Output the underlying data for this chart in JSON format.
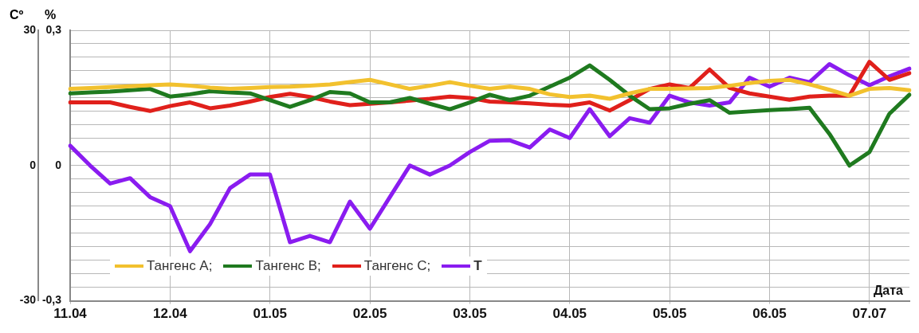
{
  "chart_data": {
    "type": "line",
    "xlabel": "Дата",
    "ylabel": "Cº",
    "y2label": "%",
    "categories": [
      "11.04",
      null,
      null,
      null,
      null,
      "12.04",
      null,
      null,
      null,
      null,
      "01.05",
      null,
      null,
      null,
      null,
      "02.05",
      null,
      null,
      null,
      null,
      "03.05",
      null,
      null,
      null,
      null,
      "04.05",
      null,
      null,
      null,
      null,
      "05.05",
      null,
      null,
      null,
      null,
      "06.05",
      null,
      null,
      null,
      null,
      "07.07",
      null,
      null
    ],
    "ylim": [
      -30,
      30
    ],
    "yticks": [
      {
        "value": -30,
        "label": "-30"
      },
      {
        "value": -27,
        "label": null
      },
      {
        "value": -24,
        "label": null
      },
      {
        "value": -21,
        "label": null
      },
      {
        "value": -18,
        "label": null
      },
      {
        "value": -15,
        "label": null
      },
      {
        "value": -12,
        "label": null
      },
      {
        "value": -9,
        "label": null
      },
      {
        "value": -6,
        "label": null
      },
      {
        "value": -3,
        "label": null
      },
      {
        "value": 0,
        "label": "0"
      },
      {
        "value": 3,
        "label": null
      },
      {
        "value": 6,
        "label": null
      },
      {
        "value": 9,
        "label": null
      },
      {
        "value": 12,
        "label": null
      },
      {
        "value": 15,
        "label": null
      },
      {
        "value": 18,
        "label": null
      },
      {
        "value": 21,
        "label": null
      },
      {
        "value": 24,
        "label": null
      },
      {
        "value": 27,
        "label": null
      },
      {
        "value": 30,
        "label": "30"
      }
    ],
    "y2lim": [
      -0.3,
      0.3
    ],
    "y2ticks": [
      {
        "value": -0.3,
        "label": "-0,3"
      },
      {
        "value": 0,
        "label": "0"
      },
      {
        "value": 0.3,
        "label": "0,3"
      }
    ],
    "grid": true,
    "legend": "bottom left",
    "line_style": "solid",
    "series": [
      {
        "name": "Тангенс А;",
        "color": "#f2c12e",
        "axis": "y2",
        "values": [
          0.17,
          0.172,
          0.174,
          0.176,
          0.178,
          0.18,
          0.177,
          0.173,
          0.17,
          0.172,
          0.174,
          0.175,
          0.177,
          0.18,
          0.185,
          0.19,
          0.18,
          0.17,
          0.177,
          0.185,
          0.177,
          0.17,
          0.175,
          0.17,
          0.158,
          0.152,
          0.155,
          0.148,
          0.16,
          0.17,
          0.17,
          0.171,
          0.172,
          0.177,
          0.183,
          0.188,
          0.19,
          0.18,
          0.168,
          0.155,
          0.17,
          0.172,
          0.167
        ]
      },
      {
        "name": "Тангенс В;",
        "color": "#1f7a1f",
        "axis": "y2",
        "values": [
          0.16,
          0.162,
          0.164,
          0.167,
          0.17,
          0.153,
          0.158,
          0.165,
          0.162,
          0.16,
          0.145,
          0.13,
          0.145,
          0.163,
          0.16,
          0.14,
          0.14,
          0.15,
          0.137,
          0.125,
          0.14,
          0.157,
          0.145,
          0.155,
          0.175,
          0.195,
          0.222,
          0.19,
          0.155,
          0.125,
          0.127,
          0.137,
          0.145,
          0.117,
          0.12,
          0.123,
          0.125,
          0.128,
          0.07,
          0.0,
          0.03,
          0.115,
          0.157
        ]
      },
      {
        "name": "Тангенс С;",
        "color": "#e0201b",
        "axis": "y2",
        "values": [
          0.14,
          0.14,
          0.14,
          0.13,
          0.121,
          0.132,
          0.14,
          0.127,
          0.133,
          0.142,
          0.152,
          0.159,
          0.152,
          0.142,
          0.134,
          0.137,
          0.14,
          0.144,
          0.148,
          0.153,
          0.15,
          0.142,
          0.14,
          0.138,
          0.135,
          0.133,
          0.14,
          0.122,
          0.145,
          0.17,
          0.18,
          0.172,
          0.213,
          0.172,
          0.16,
          0.153,
          0.146,
          0.153,
          0.155,
          0.155,
          0.23,
          0.19,
          0.205
        ]
      },
      {
        "name": "T",
        "color": "#8a1cf0",
        "axis": "y",
        "values": [
          4.4,
          0,
          -4,
          -2.8,
          -7,
          -9,
          -19,
          -13,
          -5,
          -2,
          -2,
          -17,
          -15.6,
          -17,
          -8,
          -14,
          -7,
          0,
          -2,
          0,
          3,
          5.5,
          5.6,
          4,
          8,
          6.1,
          12.5,
          6.5,
          10.5,
          9.5,
          15.5,
          14,
          13.3,
          14,
          19.5,
          17.5,
          19.5,
          18.5,
          22.5,
          20,
          17.8,
          19.8,
          21.5
        ]
      }
    ]
  }
}
